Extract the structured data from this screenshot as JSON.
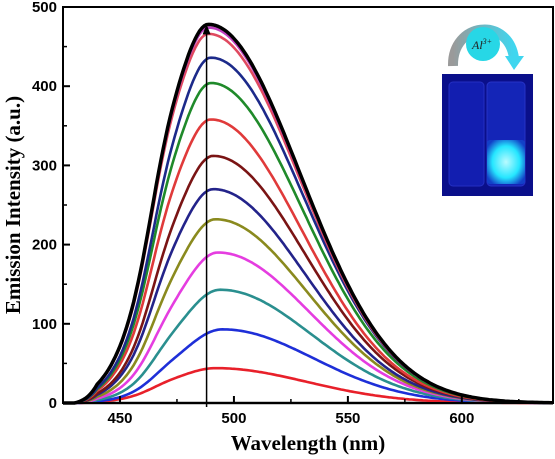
{
  "chart_data": {
    "type": "line",
    "xlabel": "Wavelength (nm)",
    "ylabel": "Emission Intensity (a.u.)",
    "xlim": [
      425,
      640
    ],
    "ylim": [
      0,
      500
    ],
    "xticks": [
      450,
      500,
      550,
      600
    ],
    "yticks": [
      0,
      100,
      200,
      300,
      400,
      500
    ],
    "grid": false,
    "legend": "none",
    "series": [
      {
        "color": "#1a1a1a",
        "peak_wavelength": 490,
        "peak": 0
      },
      {
        "color": "#e8202a",
        "peak_wavelength": 492,
        "peak": 44
      },
      {
        "color": "#1e2fd8",
        "peak_wavelength": 495,
        "peak": 93
      },
      {
        "color": "#2a8f8f",
        "peak_wavelength": 494,
        "peak": 143
      },
      {
        "color": "#e53de0",
        "peak_wavelength": 493,
        "peak": 190
      },
      {
        "color": "#8a8a1e",
        "peak_wavelength": 492,
        "peak": 232
      },
      {
        "color": "#23238a",
        "peak_wavelength": 491,
        "peak": 270
      },
      {
        "color": "#7a1414",
        "peak_wavelength": 491,
        "peak": 312
      },
      {
        "color": "#e03a3a",
        "peak_wavelength": 490,
        "peak": 358
      },
      {
        "color": "#1f8a2a",
        "peak_wavelength": 490,
        "peak": 404
      },
      {
        "color": "#1c2a8a",
        "peak_wavelength": 490,
        "peak": 436
      },
      {
        "color": "#e04a60",
        "peak_wavelength": 489,
        "peak": 466
      },
      {
        "color": "#c040c0",
        "peak_wavelength": 489,
        "peak": 474
      },
      {
        "color": "#000000",
        "peak_wavelength": 489,
        "peak": 478
      }
    ],
    "marker_line_wavelength": 488,
    "inset": {
      "ion_label": "Al",
      "ion_charge": "3+",
      "colors": {
        "photo_background": "#0a0f8a",
        "vial_glow": "#25e6ff",
        "ion_circle": "#27d7e6",
        "arrow_start": "#9a9a9a",
        "arrow_end": "#3fd6ef"
      }
    }
  }
}
